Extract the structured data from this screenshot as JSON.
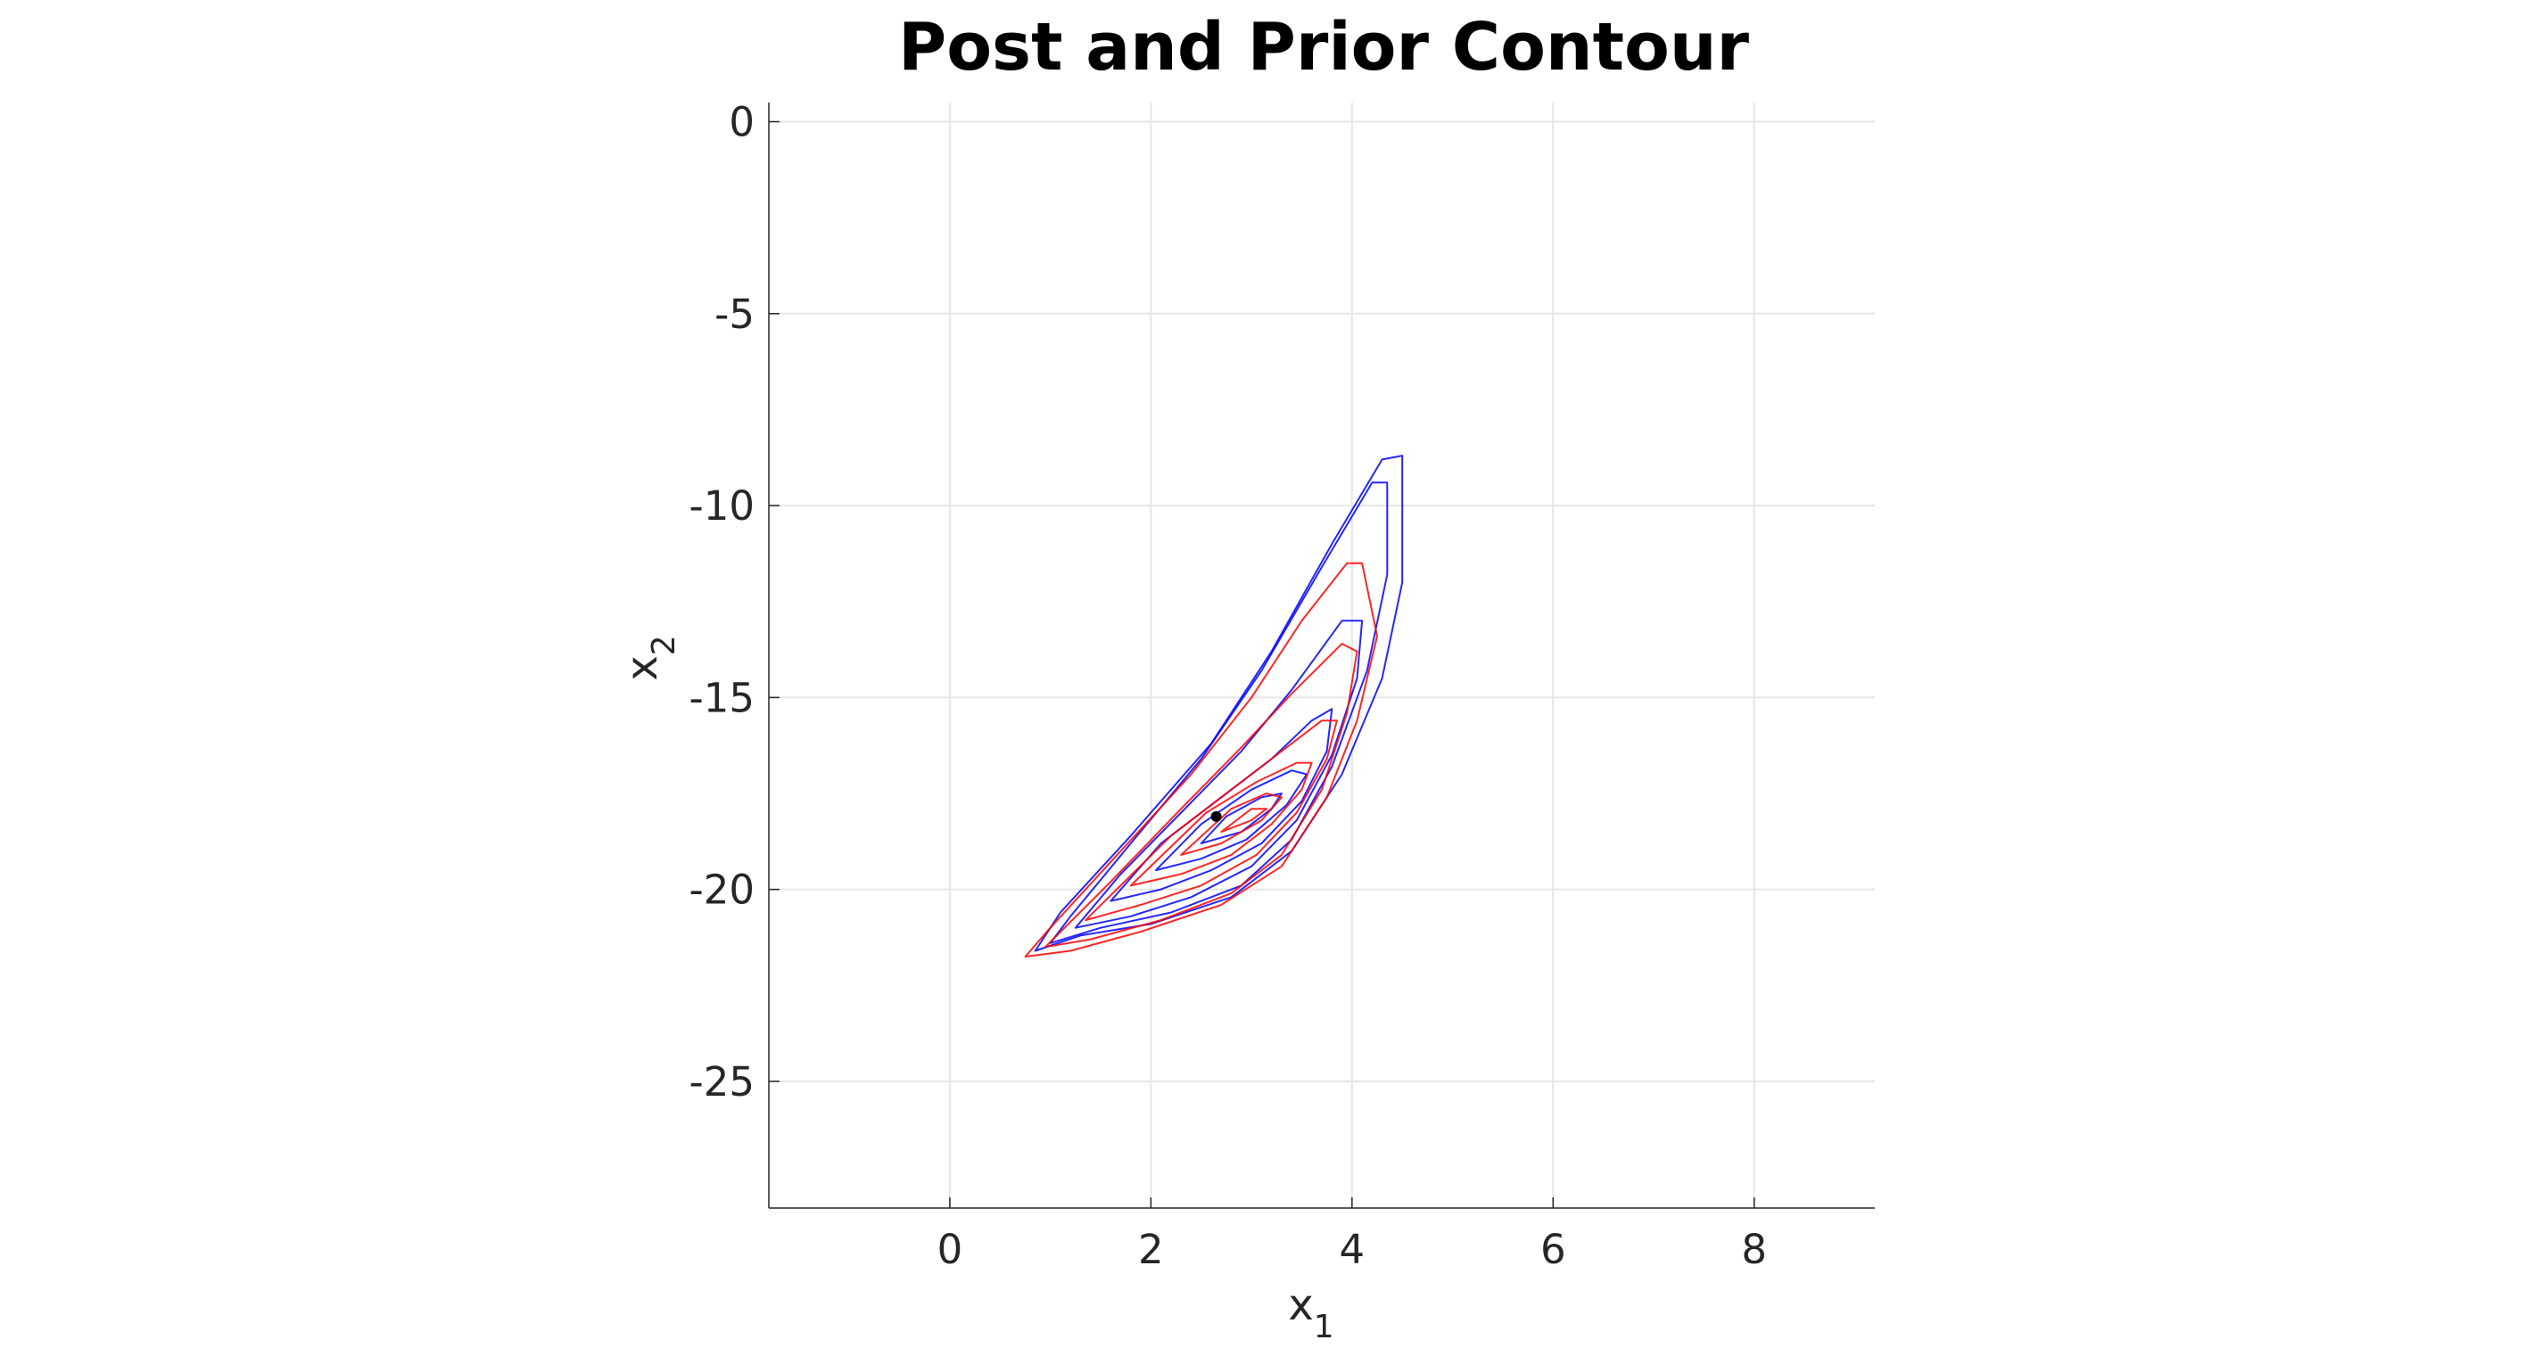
{
  "chart_data": {
    "type": "contour",
    "title": "Post and Prior Contour",
    "xlabel": "x",
    "xlabel_subscript": "1",
    "ylabel": "x",
    "ylabel_subscript": "2",
    "xlim": [
      -1.8,
      9.2
    ],
    "ylim": [
      -28.3,
      0.5
    ],
    "xticks": [
      0,
      2,
      4,
      6,
      8
    ],
    "yticks": [
      0,
      -5,
      -10,
      -15,
      -20,
      -25
    ],
    "grid": true,
    "series": [
      {
        "color": "#0000ff",
        "levels": [
          [
            [
              0.85,
              -21.6
            ],
            [
              1.3,
              -21.2
            ],
            [
              2.0,
              -20.9
            ],
            [
              2.8,
              -20.2
            ],
            [
              3.4,
              -19.0
            ],
            [
              3.9,
              -17.0
            ],
            [
              4.3,
              -14.5
            ],
            [
              4.5,
              -12.0
            ],
            [
              4.5,
              -8.7
            ],
            [
              4.3,
              -8.8
            ],
            [
              3.8,
              -11.0
            ],
            [
              3.2,
              -13.8
            ],
            [
              2.6,
              -16.2
            ],
            [
              1.8,
              -18.6
            ],
            [
              1.1,
              -20.6
            ],
            [
              0.85,
              -21.6
            ]
          ],
          [
            [
              1.0,
              -21.4
            ],
            [
              1.5,
              -21.0
            ],
            [
              2.2,
              -20.6
            ],
            [
              2.9,
              -19.9
            ],
            [
              3.4,
              -18.7
            ],
            [
              3.8,
              -16.8
            ],
            [
              4.15,
              -14.3
            ],
            [
              4.35,
              -11.8
            ],
            [
              4.35,
              -9.4
            ],
            [
              4.2,
              -9.4
            ],
            [
              3.7,
              -11.6
            ],
            [
              3.1,
              -14.3
            ],
            [
              2.5,
              -16.6
            ],
            [
              1.8,
              -18.8
            ],
            [
              1.2,
              -20.7
            ],
            [
              1.0,
              -21.4
            ]
          ],
          [
            [
              1.25,
              -21.0
            ],
            [
              1.8,
              -20.7
            ],
            [
              2.4,
              -20.2
            ],
            [
              3.0,
              -19.4
            ],
            [
              3.45,
              -18.2
            ],
            [
              3.8,
              -16.5
            ],
            [
              4.05,
              -14.5
            ],
            [
              4.1,
              -13.0
            ],
            [
              3.9,
              -13.0
            ],
            [
              3.4,
              -14.8
            ],
            [
              2.9,
              -16.4
            ],
            [
              2.3,
              -18.0
            ],
            [
              1.7,
              -19.6
            ],
            [
              1.25,
              -21.0
            ]
          ],
          [
            [
              1.6,
              -20.3
            ],
            [
              2.1,
              -20.0
            ],
            [
              2.6,
              -19.5
            ],
            [
              3.1,
              -18.8
            ],
            [
              3.5,
              -17.7
            ],
            [
              3.75,
              -16.4
            ],
            [
              3.8,
              -15.3
            ],
            [
              3.6,
              -15.6
            ],
            [
              3.2,
              -16.6
            ],
            [
              2.7,
              -17.6
            ],
            [
              2.1,
              -18.8
            ],
            [
              1.6,
              -20.3
            ]
          ],
          [
            [
              2.05,
              -19.5
            ],
            [
              2.5,
              -19.2
            ],
            [
              2.95,
              -18.7
            ],
            [
              3.35,
              -17.8
            ],
            [
              3.55,
              -17.0
            ],
            [
              3.4,
              -16.9
            ],
            [
              3.0,
              -17.4
            ],
            [
              2.5,
              -18.3
            ],
            [
              2.05,
              -19.5
            ]
          ],
          [
            [
              2.5,
              -18.8
            ],
            [
              2.9,
              -18.5
            ],
            [
              3.2,
              -17.9
            ],
            [
              3.3,
              -17.5
            ],
            [
              3.1,
              -17.6
            ],
            [
              2.75,
              -18.1
            ],
            [
              2.5,
              -18.8
            ]
          ]
        ]
      },
      {
        "color": "#ff0000",
        "levels": [
          [
            [
              0.75,
              -21.75
            ],
            [
              1.2,
              -21.6
            ],
            [
              1.9,
              -21.1
            ],
            [
              2.7,
              -20.4
            ],
            [
              3.3,
              -19.4
            ],
            [
              3.75,
              -17.6
            ],
            [
              4.05,
              -15.6
            ],
            [
              4.25,
              -13.4
            ],
            [
              4.1,
              -11.5
            ],
            [
              3.95,
              -11.5
            ],
            [
              3.5,
              -13.0
            ],
            [
              3.0,
              -15.0
            ],
            [
              2.4,
              -17.0
            ],
            [
              1.7,
              -19.0
            ],
            [
              1.0,
              -21.0
            ],
            [
              0.75,
              -21.75
            ]
          ],
          [
            [
              0.95,
              -21.5
            ],
            [
              1.4,
              -21.3
            ],
            [
              2.1,
              -20.8
            ],
            [
              2.8,
              -20.1
            ],
            [
              3.3,
              -19.1
            ],
            [
              3.7,
              -17.4
            ],
            [
              3.95,
              -15.4
            ],
            [
              4.05,
              -13.8
            ],
            [
              3.9,
              -13.6
            ],
            [
              3.4,
              -14.9
            ],
            [
              2.9,
              -16.3
            ],
            [
              2.3,
              -17.9
            ],
            [
              1.6,
              -19.8
            ],
            [
              0.95,
              -21.5
            ]
          ],
          [
            [
              1.35,
              -20.8
            ],
            [
              1.9,
              -20.4
            ],
            [
              2.5,
              -19.9
            ],
            [
              3.05,
              -19.1
            ],
            [
              3.45,
              -18.0
            ],
            [
              3.75,
              -16.6
            ],
            [
              3.85,
              -15.6
            ],
            [
              3.7,
              -15.6
            ],
            [
              3.3,
              -16.4
            ],
            [
              2.8,
              -17.4
            ],
            [
              2.2,
              -18.6
            ],
            [
              1.35,
              -20.8
            ]
          ],
          [
            [
              1.8,
              -19.9
            ],
            [
              2.3,
              -19.6
            ],
            [
              2.8,
              -19.1
            ],
            [
              3.2,
              -18.3
            ],
            [
              3.5,
              -17.4
            ],
            [
              3.6,
              -16.7
            ],
            [
              3.45,
              -16.7
            ],
            [
              3.05,
              -17.2
            ],
            [
              2.55,
              -18.0
            ],
            [
              1.8,
              -19.9
            ]
          ],
          [
            [
              2.3,
              -19.1
            ],
            [
              2.7,
              -18.8
            ],
            [
              3.1,
              -18.2
            ],
            [
              3.3,
              -17.6
            ],
            [
              3.15,
              -17.5
            ],
            [
              2.8,
              -17.9
            ],
            [
              2.3,
              -19.1
            ]
          ],
          [
            [
              2.7,
              -18.5
            ],
            [
              3.0,
              -18.2
            ],
            [
              3.15,
              -17.9
            ],
            [
              3.0,
              -17.9
            ],
            [
              2.7,
              -18.5
            ]
          ]
        ]
      }
    ],
    "points": [
      {
        "x": 2.65,
        "y": -18.1,
        "color": "#000000"
      }
    ]
  }
}
